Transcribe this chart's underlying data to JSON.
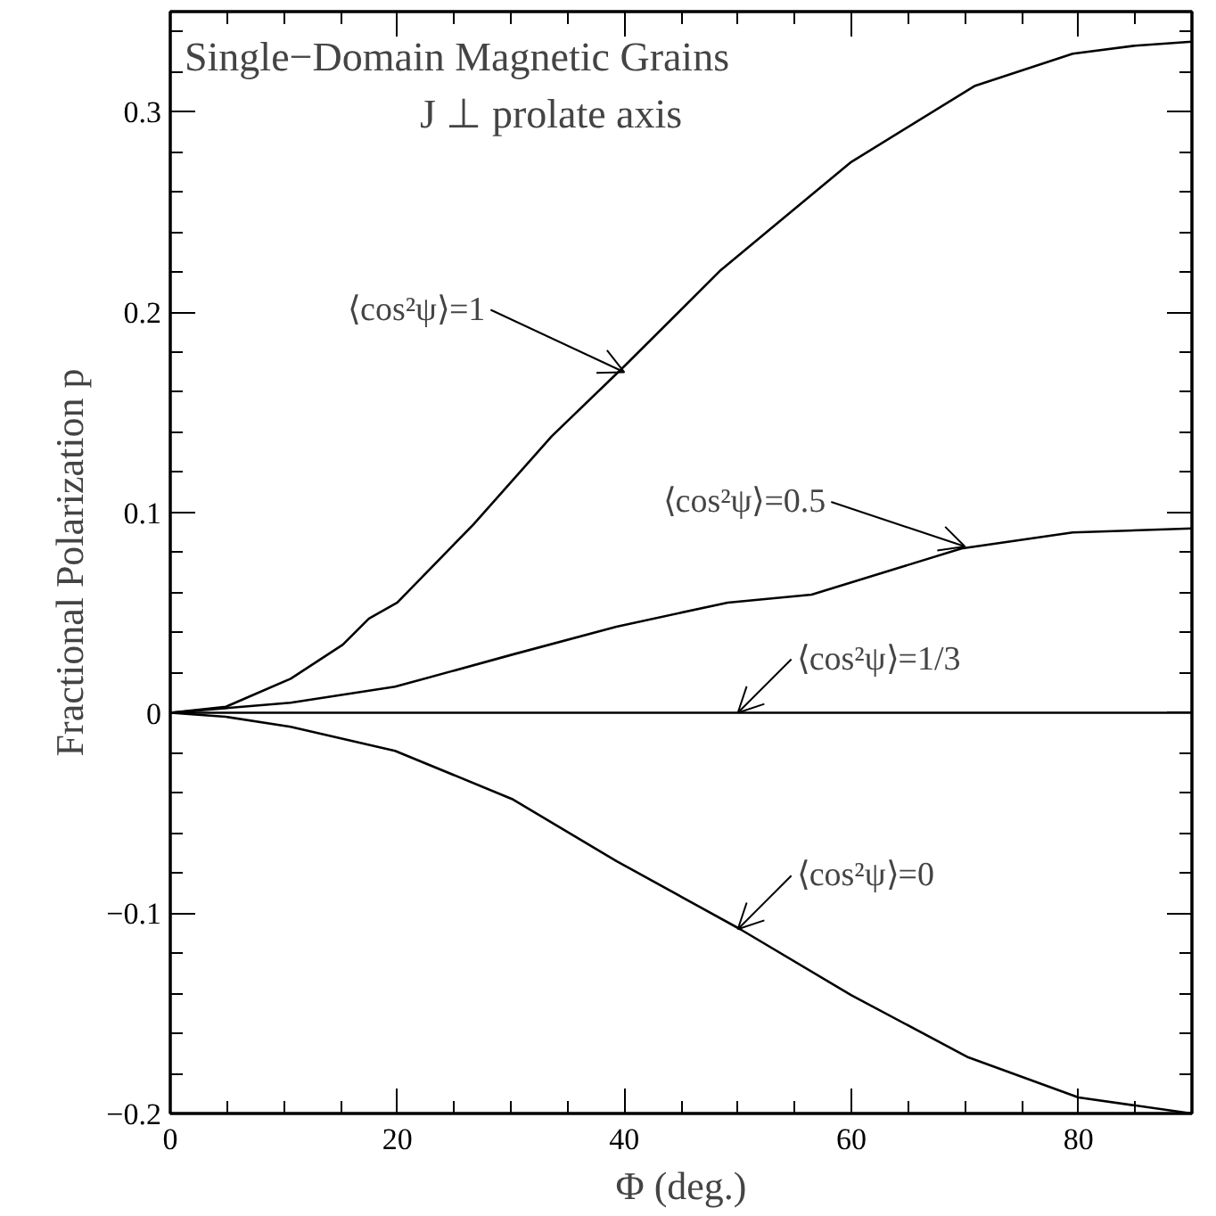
{
  "chart_data": {
    "type": "line",
    "title": "Single−Domain Magnetic Grains",
    "subtitle": "J ⊥ prolate axis",
    "xlabel": "Φ (deg.)",
    "ylabel": "Fractional Polarization p",
    "xlim": [
      0,
      90
    ],
    "ylim": [
      -0.2,
      0.35
    ],
    "xticks": [
      0,
      20,
      40,
      60,
      80
    ],
    "yticks": [
      -0.2,
      -0.1,
      0,
      0.1,
      0.2,
      0.3
    ],
    "marker": "none",
    "line_style": "solid",
    "series": [
      {
        "color": "#000000",
        "x": [
          0,
          4.9,
          10.6,
          15.2,
          17.5,
          20,
          26.7,
          33.6,
          40,
          48.5,
          60,
          70.9,
          79.5,
          85,
          90
        ],
        "values": [
          0,
          0.003,
          0.017,
          0.034,
          0.047,
          0.055,
          0.094,
          0.138,
          0.173,
          0.221,
          0.275,
          0.313,
          0.329,
          0.333,
          0.335
        ]
      },
      {
        "color": "#000000",
        "x": [
          0,
          10.6,
          19.8,
          30.1,
          39.3,
          49.1,
          56.5,
          69.7,
          79.5,
          90
        ],
        "values": [
          0,
          0.005,
          0.013,
          0.029,
          0.043,
          0.055,
          0.059,
          0.082,
          0.09,
          0.092
        ]
      },
      {
        "color": "#000000",
        "x": [
          0,
          90
        ],
        "values": [
          0,
          0
        ]
      },
      {
        "color": "#000000",
        "x": [
          0,
          4.9,
          10.6,
          19.8,
          30.1,
          39.3,
          50.2,
          60,
          70.3,
          80,
          90
        ],
        "values": [
          0,
          -0.002,
          -0.007,
          -0.019,
          -0.043,
          -0.074,
          -0.108,
          -0.141,
          -0.172,
          -0.192,
          -0.2
        ]
      }
    ],
    "annotations": [
      {
        "text": "⟨cos²ψ⟩=1",
        "x": 40,
        "y": 0.17
      },
      {
        "text": "⟨cos²ψ⟩=0.5",
        "x": 70,
        "y": 0.083
      },
      {
        "text": "⟨cos²ψ⟩=1/3",
        "x": 50,
        "y": 0
      },
      {
        "text": "⟨cos²ψ⟩=0",
        "x": 50,
        "y": -0.108
      }
    ]
  }
}
